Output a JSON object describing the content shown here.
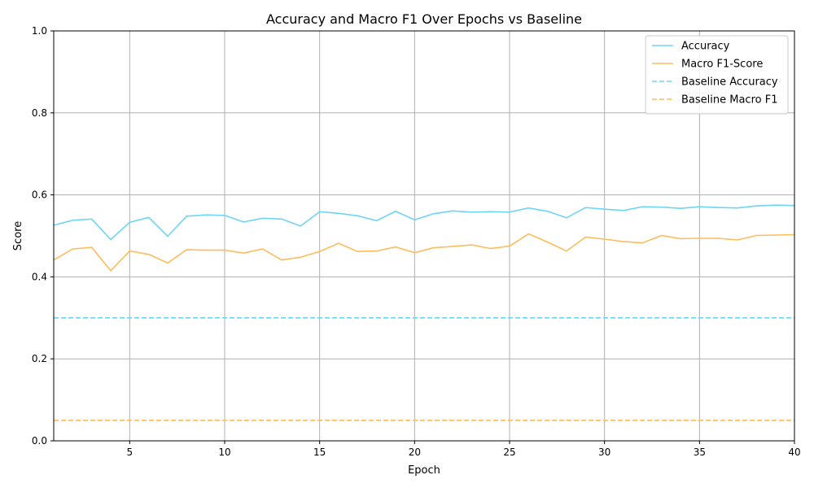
{
  "chart_data": {
    "type": "line",
    "title": "Accuracy and Macro F1 Over Epochs vs Baseline",
    "xlabel": "Epoch",
    "ylabel": "Score",
    "xlim": [
      1,
      40
    ],
    "ylim": [
      0,
      1.0
    ],
    "grid": "vertical and horizontal",
    "legend_position": "top-right",
    "x_ticks": [
      5,
      10,
      15,
      20,
      25,
      30,
      35,
      40
    ],
    "y_ticks": [
      0.0,
      0.2,
      0.4,
      0.6,
      0.8,
      1.0
    ],
    "x_tick_labels": [
      "5",
      "10",
      "15",
      "20",
      "25",
      "30",
      "35",
      "40"
    ],
    "y_tick_labels": [
      "0.0",
      "0.2",
      "0.4",
      "0.6",
      "0.8",
      "1.0"
    ],
    "x": [
      1,
      2,
      3,
      4,
      5,
      6,
      7,
      8,
      9,
      10,
      11,
      12,
      13,
      14,
      15,
      16,
      17,
      18,
      19,
      20,
      21,
      22,
      23,
      24,
      25,
      26,
      27,
      28,
      29,
      30,
      31,
      32,
      33,
      34,
      35,
      36,
      37,
      38,
      39,
      40
    ],
    "series": [
      {
        "name": "Accuracy",
        "color": "#6dd5f5",
        "style": "solid",
        "values": [
          0.526,
          0.538,
          0.541,
          0.491,
          0.533,
          0.545,
          0.499,
          0.548,
          0.551,
          0.55,
          0.534,
          0.543,
          0.541,
          0.524,
          0.559,
          0.555,
          0.549,
          0.537,
          0.56,
          0.539,
          0.554,
          0.561,
          0.558,
          0.559,
          0.558,
          0.568,
          0.56,
          0.544,
          0.569,
          0.565,
          0.562,
          0.571,
          0.57,
          0.567,
          0.571,
          0.569,
          0.568,
          0.573,
          0.575,
          0.574
        ]
      },
      {
        "name": "Macro F1-Score",
        "color": "#ffbc5c",
        "style": "solid",
        "values": [
          0.441,
          0.468,
          0.472,
          0.415,
          0.463,
          0.455,
          0.434,
          0.466,
          0.465,
          0.465,
          0.458,
          0.468,
          0.441,
          0.448,
          0.462,
          0.482,
          0.462,
          0.463,
          0.473,
          0.459,
          0.471,
          0.474,
          0.478,
          0.469,
          0.475,
          0.505,
          0.485,
          0.463,
          0.497,
          0.492,
          0.486,
          0.483,
          0.501,
          0.493,
          0.494,
          0.494,
          0.49,
          0.501,
          0.502,
          0.503
        ]
      },
      {
        "name": "Baseline Accuracy",
        "color": "#6dd5f5",
        "style": "dashed",
        "constant": 0.3
      },
      {
        "name": "Baseline Macro F1",
        "color": "#ffbc5c",
        "style": "dashed",
        "constant": 0.05
      }
    ]
  }
}
